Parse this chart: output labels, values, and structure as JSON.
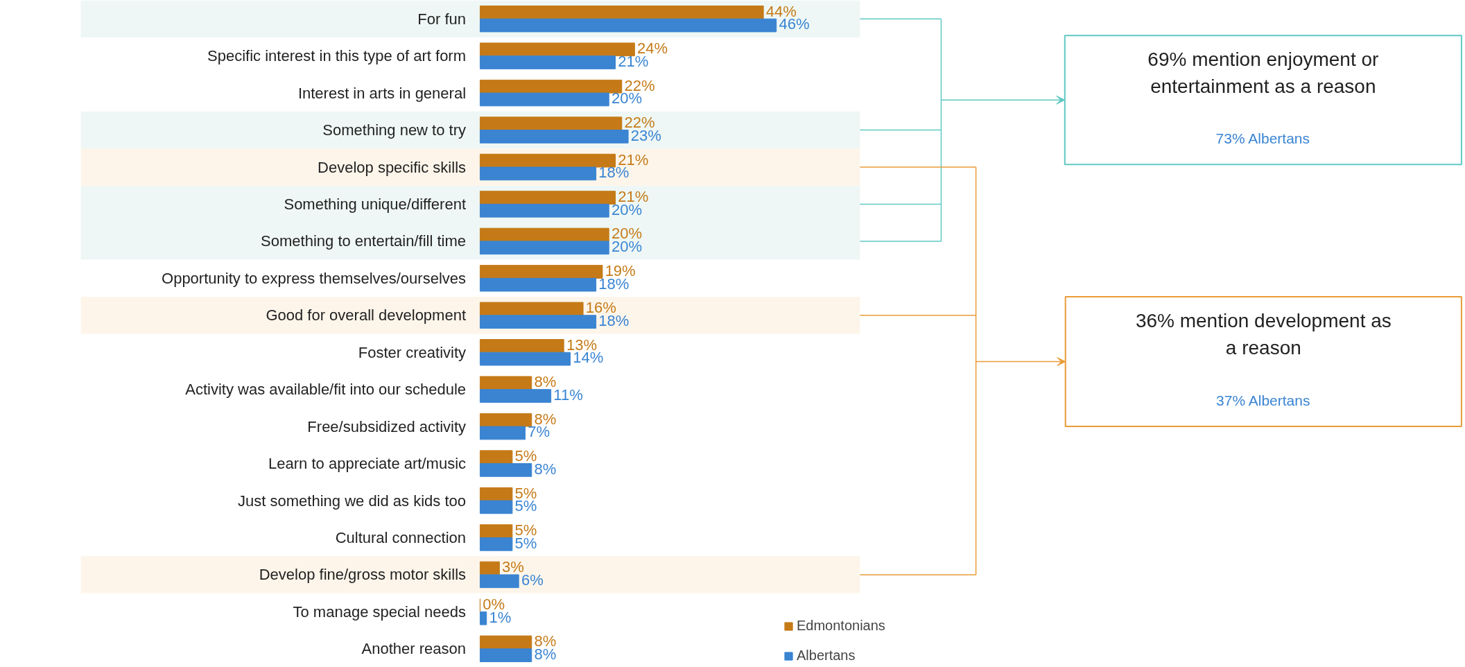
{
  "chart_data": {
    "type": "bar",
    "orientation": "horizontal",
    "grid": false,
    "legend": "bottom right",
    "categories": [
      "For fun",
      "Specific interest in this type of art form",
      "Interest in arts in general",
      "Something new to try",
      "Develop specific skills",
      "Something unique/different",
      "Something to entertain/fill time",
      "Opportunity to express themselves/ourselves",
      "Good for overall development",
      "Foster creativity",
      "Activity was available/fit into our schedule",
      "Free/subsidized activity",
      "Learn to appreciate art/music",
      "Just something we did as kids too",
      "Cultural connection",
      "Develop fine/gross motor skills",
      "To manage special needs",
      "Another reason"
    ],
    "series": [
      {
        "name": "Edmontonians",
        "color": "#c57a17",
        "values": [
          44,
          24,
          22,
          22,
          21,
          21,
          20,
          19,
          16,
          13,
          8,
          8,
          5,
          5,
          5,
          3,
          0,
          8
        ],
        "value_labels": [
          "44%",
          "24%",
          "22%",
          "22%",
          "21%",
          "21%",
          "20%",
          "19%",
          "16%",
          "13%",
          "8%",
          "8%",
          "5%",
          "5%",
          "5%",
          "3%",
          "0%",
          "8%"
        ]
      },
      {
        "name": "Albertans",
        "color": "#3a84d2",
        "values": [
          46,
          21,
          20,
          23,
          18,
          20,
          20,
          18,
          18,
          14,
          11,
          7,
          8,
          5,
          5,
          6,
          1,
          8
        ],
        "value_labels": [
          "46%",
          "21%",
          "20%",
          "23%",
          "18%",
          "20%",
          "20%",
          "18%",
          "18%",
          "14%",
          "11%",
          "7%",
          "8%",
          "5%",
          "5%",
          "6%",
          "1%",
          "8%"
        ]
      }
    ],
    "bands": [
      {
        "axis": "y",
        "from": "For fun",
        "to": "For fun",
        "color": "#eef7f5"
      },
      {
        "axis": "y",
        "from": "Something new to try",
        "to": "Something new to try",
        "color": "#eef7f5"
      },
      {
        "axis": "y",
        "from": "Something unique/different",
        "to": "Something to entertain/fill time",
        "color": "#eef7f5"
      },
      {
        "axis": "y",
        "from": "Develop specific skills",
        "to": "Develop specific skills",
        "color": "#fdf5ea"
      },
      {
        "axis": "y",
        "from": "Good for overall development",
        "to": "Good for overall development",
        "color": "#fdf5ea"
      },
      {
        "axis": "y",
        "from": "Develop fine/gross motor skills",
        "to": "Develop fine/gross motor skills",
        "color": "#fdf5ea"
      }
    ],
    "annotations": [
      "69% mention enjoyment or entertainment as a reason",
      "73% Albertans",
      "36% mention development as a reason",
      "37% Albertans"
    ]
  }
}
